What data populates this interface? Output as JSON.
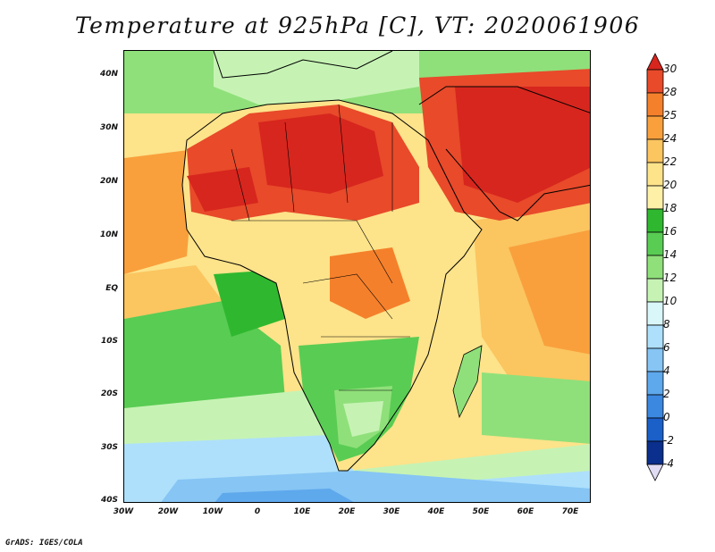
{
  "title": "Temperature at 925hPa [C], VT: 2020061906",
  "credit": "GrADS: IGES/COLA",
  "lat_labels": [
    "40N",
    "30N",
    "20N",
    "10N",
    "EQ",
    "10S",
    "20S",
    "30S",
    "40S"
  ],
  "lon_labels": [
    "30W",
    "20W",
    "10W",
    "0",
    "10E",
    "20E",
    "30E",
    "40E",
    "50E",
    "60E",
    "70E"
  ],
  "colorbar": {
    "levels": [
      "30",
      "28",
      "25",
      "24",
      "22",
      "20",
      "18",
      "16",
      "14",
      "12",
      "10",
      "8",
      "6",
      "4",
      "2",
      "0",
      "-2",
      "-4"
    ],
    "colors": [
      "#d7261e",
      "#e84a2a",
      "#f5802b",
      "#f9a03c",
      "#fbc560",
      "#fde38a",
      "#fff0a8",
      "#2fb82f",
      "#59cc53",
      "#8fe07a",
      "#c6f3b4",
      "#d9f6f8",
      "#aee0fb",
      "#86c5f4",
      "#5ea8ec",
      "#3b88e0",
      "#1b5fc9",
      "#0a2f8c",
      "#08206b"
    ]
  },
  "palette": {
    "ocean_cool": "#8ecdf7",
    "ocean_cold": "#5ea8ec",
    "ocean_mild": "#c6f3b4",
    "ocean_green": "#59cc53",
    "land_warm": "#fbc560",
    "land_hot": "#e84a2a",
    "land_hottest": "#d7261e",
    "border": "#000000"
  }
}
